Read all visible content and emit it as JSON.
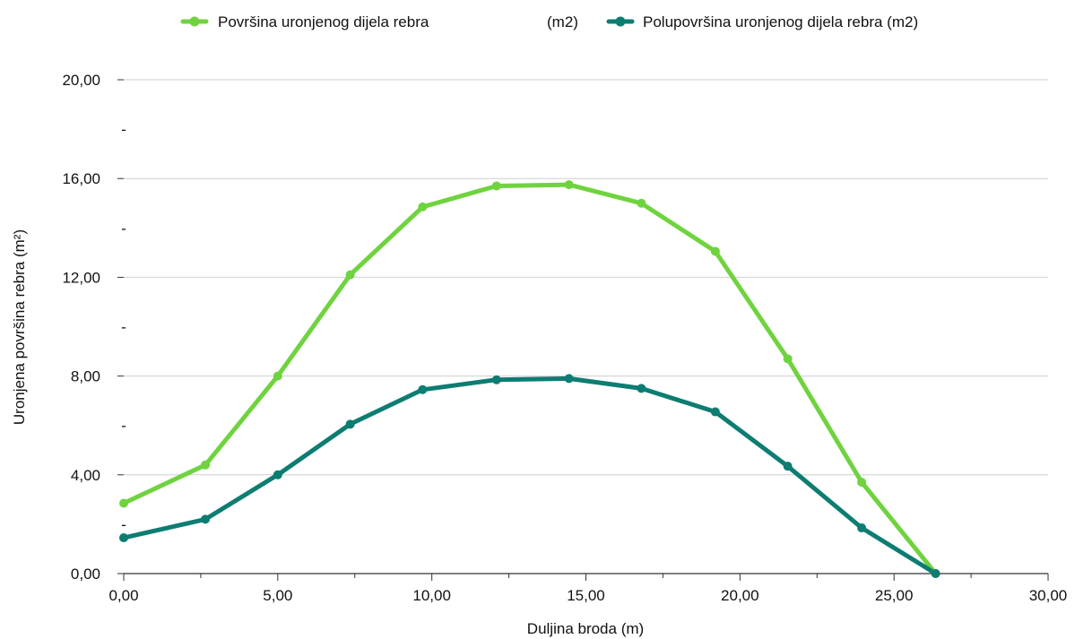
{
  "chart_data": {
    "type": "line",
    "title": "",
    "xlabel": "Duljina broda (m)",
    "ylabel": "Uronjena površina rebra (m²)",
    "xlim": [
      0,
      30
    ],
    "ylim": [
      0,
      20
    ],
    "x_ticks": [
      0,
      5,
      10,
      15,
      20,
      25,
      30
    ],
    "x_tick_labels": [
      "0,00",
      "5,00",
      "10,00",
      "15,00",
      "20,00",
      "25,00",
      "30,00"
    ],
    "x_minor_ticks": [
      2.5,
      7.5,
      12.5,
      17.5,
      22.5,
      27.5
    ],
    "y_ticks": [
      0,
      4,
      8,
      12,
      16,
      20
    ],
    "y_tick_labels": [
      "0,00",
      "4,00",
      "8,00",
      "12,00",
      "16,00",
      "20,00"
    ],
    "y_minor_ticks": [
      2,
      6,
      10,
      14,
      18
    ],
    "y_minor_tick_label": "-",
    "grid": true,
    "legend_position": "top",
    "series": [
      {
        "name": "Površina uronjenog dijela rebra",
        "name_suffix": "(m2)",
        "color": "#6fd33f",
        "x": [
          0.0,
          2.65,
          5.0,
          7.35,
          9.7,
          12.1,
          14.45,
          16.8,
          19.2,
          21.55,
          23.95,
          26.35
        ],
        "values": [
          2.85,
          4.4,
          8.0,
          12.1,
          14.85,
          15.7,
          15.75,
          15.0,
          13.05,
          8.7,
          3.7,
          0.0
        ]
      },
      {
        "name": "Polupovršina uronjenog dijela rebra (m2)",
        "color": "#0d7d72",
        "x": [
          0.0,
          2.65,
          5.0,
          7.35,
          9.7,
          12.1,
          14.45,
          16.8,
          19.2,
          21.55,
          23.95,
          26.35
        ],
        "values": [
          1.45,
          2.2,
          4.0,
          6.05,
          7.45,
          7.85,
          7.9,
          7.5,
          6.55,
          4.35,
          1.85,
          0.0
        ]
      }
    ]
  }
}
